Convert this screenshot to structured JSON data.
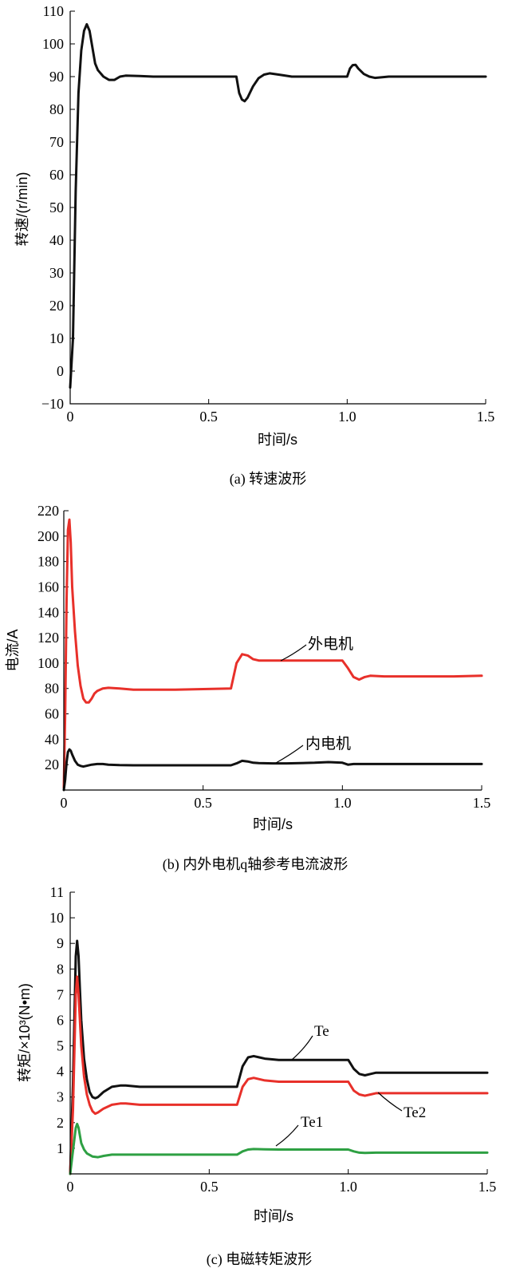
{
  "chart_data": [
    {
      "type": "line",
      "caption": "(a) 转速波形",
      "xlabel": "时间/s",
      "ylabel": "转速/(r/min)",
      "xlim": [
        0,
        1.5
      ],
      "ylim": [
        -10,
        110
      ],
      "xticks": [
        "0",
        "0.5",
        "1.0",
        "1.5"
      ],
      "xtick_values": [
        0,
        0.5,
        1.0,
        1.5
      ],
      "yticks": [
        "−10",
        "0",
        "10",
        "20",
        "30",
        "40",
        "50",
        "60",
        "70",
        "80",
        "90",
        "100",
        "110"
      ],
      "ytick_values": [
        -10,
        0,
        10,
        20,
        30,
        40,
        50,
        60,
        70,
        80,
        90,
        100,
        110
      ],
      "series": [
        {
          "color": "#111111",
          "x": [
            0,
            0.01,
            0.02,
            0.03,
            0.04,
            0.05,
            0.06,
            0.07,
            0.08,
            0.09,
            0.1,
            0.12,
            0.14,
            0.16,
            0.18,
            0.2,
            0.25,
            0.3,
            0.4,
            0.5,
            0.6,
            0.61,
            0.62,
            0.63,
            0.64,
            0.66,
            0.68,
            0.7,
            0.72,
            0.76,
            0.8,
            0.9,
            1.0,
            1.01,
            1.02,
            1.03,
            1.04,
            1.06,
            1.08,
            1.1,
            1.15,
            1.2,
            1.3,
            1.4,
            1.5
          ],
          "y": [
            -5,
            10,
            55,
            85,
            98,
            104,
            106,
            104,
            99,
            94,
            92,
            90,
            89,
            89,
            90,
            90.3,
            90.2,
            90,
            90,
            90,
            90,
            85,
            83,
            82.5,
            83.5,
            87,
            89.5,
            90.6,
            91,
            90.5,
            90,
            90,
            90,
            92.5,
            93.5,
            93.6,
            92.5,
            90.8,
            90,
            89.6,
            90,
            90,
            90,
            90,
            90
          ]
        }
      ]
    },
    {
      "type": "line",
      "caption": "(b) 内外电机q轴参考电流波形",
      "xlabel": "时间/s",
      "ylabel": "电流/A",
      "xlim": [
        0,
        1.5
      ],
      "ylim": [
        0,
        220
      ],
      "xticks": [
        "0",
        "0.5",
        "1.0",
        "1.5"
      ],
      "xtick_values": [
        0,
        0.5,
        1.0,
        1.5
      ],
      "yticks": [
        "20",
        "40",
        "60",
        "80",
        "100",
        "120",
        "140",
        "160",
        "180",
        "200",
        "220"
      ],
      "ytick_values": [
        20,
        40,
        60,
        80,
        100,
        120,
        140,
        160,
        180,
        200,
        220
      ],
      "annotations": [
        "外电机",
        "内电机"
      ],
      "series": [
        {
          "name": "外电机",
          "color": "#e8302a",
          "x": [
            0,
            0.005,
            0.01,
            0.015,
            0.02,
            0.025,
            0.03,
            0.04,
            0.05,
            0.06,
            0.07,
            0.08,
            0.09,
            0.1,
            0.11,
            0.12,
            0.14,
            0.16,
            0.2,
            0.25,
            0.3,
            0.4,
            0.5,
            0.6,
            0.62,
            0.64,
            0.66,
            0.68,
            0.7,
            0.75,
            0.8,
            0.9,
            1.0,
            1.02,
            1.04,
            1.06,
            1.08,
            1.1,
            1.15,
            1.2,
            1.3,
            1.4,
            1.5
          ],
          "y": [
            2,
            60,
            150,
            205,
            213,
            195,
            160,
            125,
            98,
            82,
            72,
            69,
            69,
            72,
            76,
            78,
            80,
            80.5,
            80,
            79,
            79,
            79,
            79.5,
            80,
            100,
            107,
            106,
            103,
            102,
            102,
            102,
            102,
            102,
            96,
            89,
            87,
            89,
            90,
            89.5,
            89.5,
            89.5,
            89.5,
            90
          ]
        },
        {
          "name": "内电机",
          "color": "#111111",
          "x": [
            0,
            0.005,
            0.01,
            0.015,
            0.02,
            0.025,
            0.03,
            0.04,
            0.05,
            0.06,
            0.07,
            0.08,
            0.1,
            0.12,
            0.14,
            0.16,
            0.2,
            0.25,
            0.3,
            0.4,
            0.5,
            0.6,
            0.62,
            0.64,
            0.66,
            0.68,
            0.7,
            0.75,
            0.8,
            0.9,
            0.95,
            1.0,
            1.02,
            1.04,
            1.06,
            1.08,
            1.1,
            1.2,
            1.3,
            1.4,
            1.5
          ],
          "y": [
            0,
            8,
            22,
            30,
            32,
            31,
            28,
            23,
            20,
            19,
            18.5,
            19,
            20,
            20.5,
            20.5,
            20,
            19.6,
            19.5,
            19.5,
            19.5,
            19.5,
            19.5,
            21,
            23,
            22.5,
            21.5,
            21.2,
            21,
            21,
            21.5,
            22,
            21.5,
            20,
            20.5,
            20.5,
            20.5,
            20.5,
            20.5,
            20.5,
            20.5,
            20.5
          ]
        }
      ]
    },
    {
      "type": "line",
      "caption": "(c) 电磁转矩波形",
      "xlabel": "时间/s",
      "ylabel": "转矩/×10³(N•m)",
      "xlim": [
        0,
        1.5
      ],
      "ylim": [
        0,
        11
      ],
      "xticks": [
        "0",
        "0.5",
        "1.0",
        "1.5"
      ],
      "xtick_values": [
        0,
        0.5,
        1.0,
        1.5
      ],
      "yticks": [
        "1",
        "2",
        "3",
        "4",
        "5",
        "6",
        "7",
        "8",
        "9",
        "10",
        "11"
      ],
      "ytick_values": [
        1,
        2,
        3,
        4,
        5,
        6,
        7,
        8,
        9,
        10,
        11
      ],
      "annotations": [
        "Te",
        "Te2",
        "Te1"
      ],
      "series": [
        {
          "name": "Te",
          "color": "#111111",
          "x": [
            0,
            0.01,
            0.02,
            0.025,
            0.03,
            0.035,
            0.04,
            0.05,
            0.06,
            0.07,
            0.08,
            0.09,
            0.1,
            0.12,
            0.15,
            0.18,
            0.2,
            0.25,
            0.3,
            0.4,
            0.5,
            0.6,
            0.62,
            0.64,
            0.66,
            0.68,
            0.7,
            0.75,
            0.8,
            0.9,
            1.0,
            1.02,
            1.04,
            1.06,
            1.08,
            1.1,
            1.15,
            1.2,
            1.3,
            1.4,
            1.5
          ],
          "y": [
            0,
            3.5,
            8.5,
            9.1,
            8.5,
            7.2,
            6,
            4.5,
            3.7,
            3.2,
            3,
            2.95,
            3,
            3.2,
            3.4,
            3.45,
            3.45,
            3.4,
            3.4,
            3.4,
            3.4,
            3.4,
            4.2,
            4.55,
            4.6,
            4.55,
            4.5,
            4.45,
            4.45,
            4.45,
            4.45,
            4.1,
            3.9,
            3.85,
            3.9,
            3.95,
            3.95,
            3.95,
            3.95,
            3.95,
            3.95
          ]
        },
        {
          "name": "Te2",
          "color": "#e8302a",
          "x": [
            0,
            0.01,
            0.02,
            0.025,
            0.03,
            0.035,
            0.04,
            0.05,
            0.06,
            0.07,
            0.08,
            0.09,
            0.1,
            0.12,
            0.15,
            0.18,
            0.2,
            0.25,
            0.3,
            0.4,
            0.5,
            0.6,
            0.62,
            0.64,
            0.66,
            0.68,
            0.7,
            0.75,
            0.8,
            0.9,
            1.0,
            1.02,
            1.04,
            1.06,
            1.08,
            1.1,
            1.15,
            1.2,
            1.3,
            1.4,
            1.5
          ],
          "y": [
            0,
            2.5,
            7,
            7.7,
            7,
            6,
            5,
            3.8,
            3.1,
            2.7,
            2.45,
            2.35,
            2.4,
            2.55,
            2.7,
            2.75,
            2.75,
            2.7,
            2.7,
            2.7,
            2.7,
            2.7,
            3.4,
            3.7,
            3.75,
            3.7,
            3.65,
            3.6,
            3.6,
            3.6,
            3.6,
            3.25,
            3.1,
            3.05,
            3.1,
            3.15,
            3.15,
            3.15,
            3.15,
            3.15,
            3.15
          ]
        },
        {
          "name": "Te1",
          "color": "#2ea043",
          "x": [
            0,
            0.01,
            0.02,
            0.025,
            0.03,
            0.035,
            0.04,
            0.05,
            0.06,
            0.08,
            0.1,
            0.12,
            0.15,
            0.2,
            0.3,
            0.4,
            0.5,
            0.6,
            0.62,
            0.64,
            0.66,
            0.7,
            0.75,
            0.8,
            0.9,
            1.0,
            1.02,
            1.04,
            1.06,
            1.1,
            1.2,
            1.3,
            1.4,
            1.5
          ],
          "y": [
            0,
            0.9,
            1.8,
            1.95,
            1.8,
            1.5,
            1.2,
            0.95,
            0.8,
            0.68,
            0.65,
            0.7,
            0.75,
            0.75,
            0.75,
            0.75,
            0.75,
            0.75,
            0.88,
            0.95,
            0.97,
            0.96,
            0.95,
            0.95,
            0.95,
            0.95,
            0.88,
            0.83,
            0.82,
            0.83,
            0.83,
            0.83,
            0.83,
            0.83
          ]
        }
      ]
    }
  ]
}
